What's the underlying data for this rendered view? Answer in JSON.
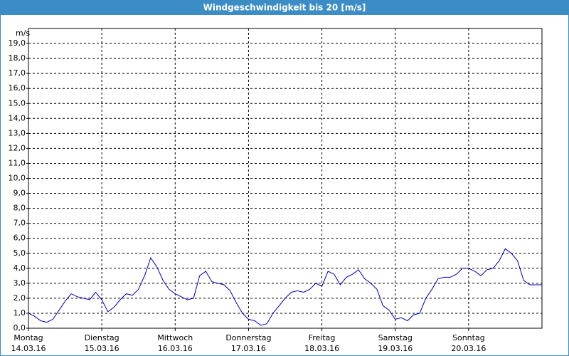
{
  "chart_data": {
    "type": "line",
    "title": "Windgeschwindigkeit bis 20 [m/s]",
    "y_unit": "m/s",
    "x_labels": [
      {
        "day": "Montag",
        "date": "14.03.16"
      },
      {
        "day": "Dienstag",
        "date": "15.03.16"
      },
      {
        "day": "Mittwoch",
        "date": "16.03.16"
      },
      {
        "day": "Donnerstag",
        "date": "17.03.16"
      },
      {
        "day": "Freitag",
        "date": "18.03.16"
      },
      {
        "day": "Samstag",
        "date": "19.03.16"
      },
      {
        "day": "Sonntag",
        "date": "20.03.16"
      }
    ],
    "color": "#0000c0",
    "values": [
      1.0,
      0.8,
      0.5,
      0.4,
      0.6,
      1.2,
      1.8,
      2.3,
      2.1,
      2.0,
      1.9,
      2.4,
      1.9,
      1.1,
      1.4,
      1.9,
      2.3,
      2.2,
      2.6,
      3.5,
      4.7,
      4.1,
      3.2,
      2.6,
      2.3,
      2.1,
      1.9,
      2.0,
      3.5,
      3.8,
      3.1,
      3.0,
      2.9,
      2.5,
      1.7,
      1.0,
      0.6,
      0.5,
      0.2,
      0.3,
      1.0,
      1.5,
      2.0,
      2.4,
      2.5,
      2.4,
      2.6,
      3.0,
      2.8,
      3.8,
      3.6,
      2.9,
      3.4,
      3.6,
      3.9,
      3.3,
      3.0,
      2.6,
      1.5,
      1.2,
      0.6,
      0.7,
      0.5,
      0.9,
      1.0,
      2.0,
      2.6,
      3.3,
      3.4,
      3.4,
      3.6,
      4.0,
      4.0,
      3.8,
      3.5,
      3.9,
      4.0,
      4.5,
      5.3,
      5.0,
      4.5,
      3.2,
      2.9,
      2.9,
      2.9
    ],
    "ylim": [
      0,
      20
    ],
    "yticks": [
      {
        "value": 0,
        "label": "0,0"
      },
      {
        "value": 1,
        "label": "1,0"
      },
      {
        "value": 2,
        "label": "2,0"
      },
      {
        "value": 3,
        "label": "3,0"
      },
      {
        "value": 4,
        "label": "4,0"
      },
      {
        "value": 5,
        "label": "5,0"
      },
      {
        "value": 6,
        "label": "6,0"
      },
      {
        "value": 7,
        "label": "7,0"
      },
      {
        "value": 8,
        "label": "8,0"
      },
      {
        "value": 9,
        "label": "9,0"
      },
      {
        "value": 10,
        "label": "10,0"
      },
      {
        "value": 11,
        "label": "11,0"
      },
      {
        "value": 12,
        "label": "12,0"
      },
      {
        "value": 13,
        "label": "13,0"
      },
      {
        "value": 14,
        "label": "14,0"
      },
      {
        "value": 15,
        "label": "15,0"
      },
      {
        "value": 16,
        "label": "16,0"
      },
      {
        "value": 17,
        "label": "17,0"
      },
      {
        "value": 18,
        "label": "18,0"
      },
      {
        "value": 19,
        "label": "19,0"
      }
    ],
    "grid": true
  }
}
